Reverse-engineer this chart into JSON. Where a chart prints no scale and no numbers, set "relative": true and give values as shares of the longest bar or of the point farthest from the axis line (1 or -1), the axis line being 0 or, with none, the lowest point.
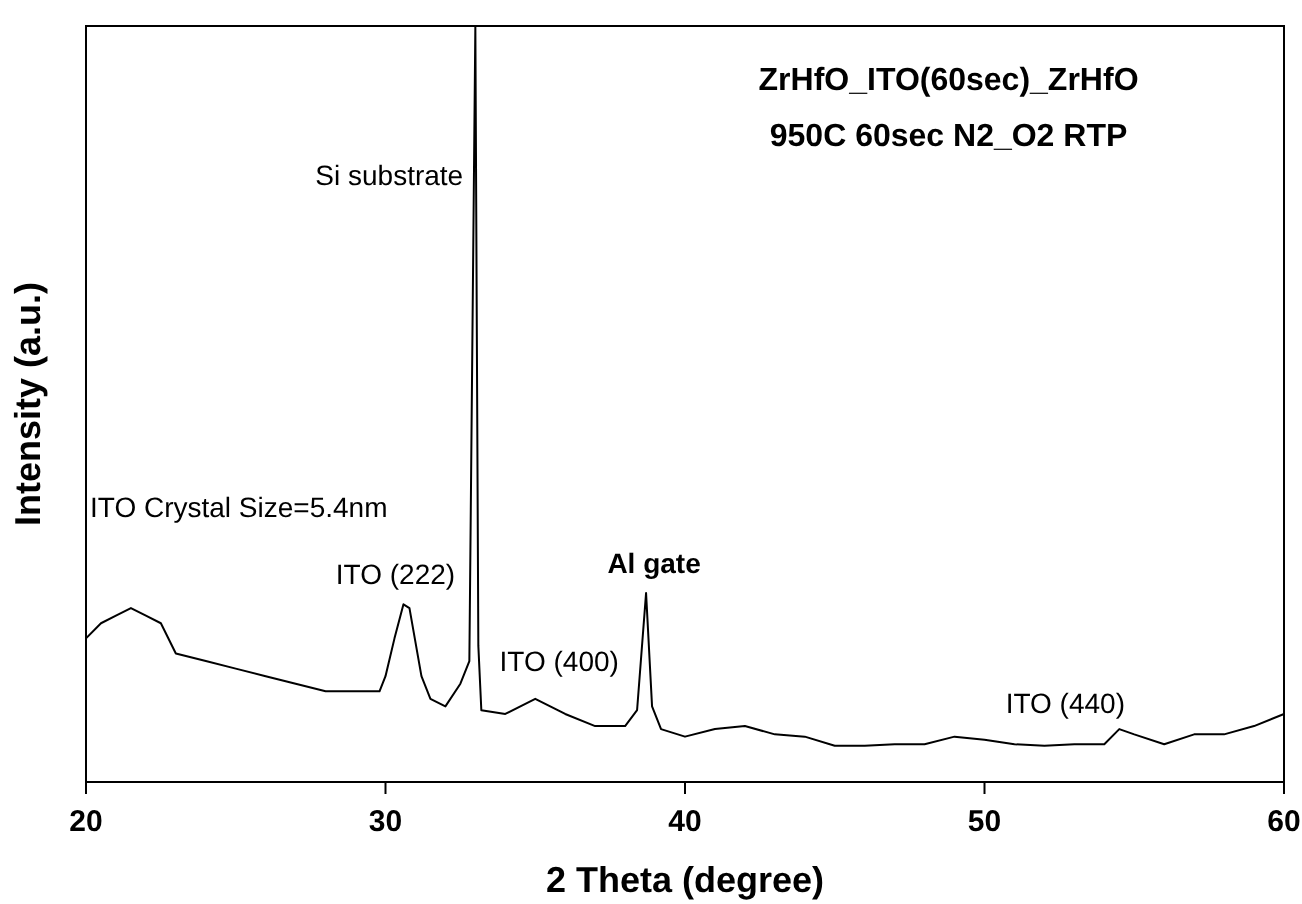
{
  "chart_data": {
    "type": "line",
    "title": "ZrHfO_ITO(60sec)_ZrHfO",
    "subtitle": "950C 60sec N2_O2 RTP",
    "xlabel": "2 Theta (degree)",
    "ylabel": "Intensity (a.u.)",
    "relative": true,
    "xlim": [
      20,
      60
    ],
    "xticks": [
      20,
      30,
      40,
      50,
      60
    ],
    "grid": false,
    "marker": "none",
    "line_style": "solid",
    "series": [
      {
        "color": "#000000",
        "x": [
          20,
          20.5,
          21,
          21.5,
          22,
          22.5,
          23,
          24,
          25,
          26,
          27,
          28,
          29,
          29.8,
          30,
          30.3,
          30.6,
          30.8,
          31.2,
          31.5,
          32,
          32.5,
          32.8,
          33,
          33.1,
          33.2,
          34,
          35,
          36,
          37,
          38,
          38.4,
          38.7,
          38.9,
          39.2,
          40,
          41,
          42,
          43,
          44,
          45,
          46,
          47,
          48,
          49,
          50,
          51,
          52,
          53,
          54,
          54.5,
          55,
          56,
          57,
          58,
          59,
          60
        ],
        "values": [
          0.19,
          0.21,
          0.22,
          0.23,
          0.22,
          0.21,
          0.17,
          0.16,
          0.15,
          0.14,
          0.13,
          0.12,
          0.12,
          0.12,
          0.14,
          0.19,
          0.235,
          0.23,
          0.14,
          0.11,
          0.1,
          0.13,
          0.16,
          1,
          0.18,
          0.095,
          0.09,
          0.11,
          0.09,
          0.074,
          0.074,
          0.095,
          0.25,
          0.1,
          0.07,
          0.06,
          0.07,
          0.074,
          0.063,
          0.06,
          0.048,
          0.048,
          0.05,
          0.05,
          0.06,
          0.056,
          0.05,
          0.048,
          0.05,
          0.05,
          0.07,
          0.063,
          0.05,
          0.063,
          0.063,
          0.074,
          0.09
        ]
      }
    ],
    "annotations": [
      "ITO Crystal Size=5.4nm",
      {
        "text": "Si substrate",
        "x": 33,
        "y": 0.79
      },
      {
        "text": "ITO (222)",
        "x": 30.6,
        "y": 0.235
      },
      {
        "text": "ITO (400)",
        "x": 35,
        "y": 0.11
      },
      {
        "text": "Al gate",
        "x": 38.7,
        "y": 0.25
      },
      {
        "text": "ITO (440)",
        "x": 52.7,
        "y": 0.06
      }
    ]
  }
}
